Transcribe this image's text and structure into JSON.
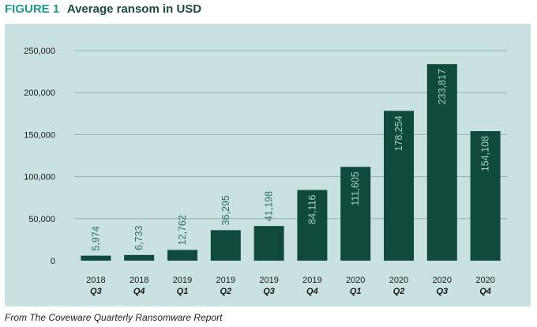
{
  "figure": {
    "label": "FIGURE 1",
    "title": "Average ransom in USD"
  },
  "source": "From The Coveware Quarterly Ransomware Report",
  "colors": {
    "bar": "#0f4a3d",
    "panel_background": "#c9e2e1",
    "gridline": "#8fb3b0",
    "title_accent": "#1e9a8a",
    "title": "#1b4a3f",
    "value_label": "#a9ccc6"
  },
  "chart_data": {
    "type": "bar",
    "title": "Average ransom in USD",
    "xlabel": "",
    "ylabel": "",
    "ylim": [
      0,
      250000
    ],
    "yticks": [
      0,
      50000,
      100000,
      150000,
      200000,
      250000
    ],
    "ytick_labels": [
      "0",
      "50,000",
      "100,000",
      "150,000",
      "200,000",
      "250,000"
    ],
    "grid": true,
    "categories": [
      "2018 Q3",
      "2018 Q4",
      "2019 Q1",
      "2019 Q2",
      "2019 Q3",
      "2019 Q4",
      "2020 Q1",
      "2020 Q2",
      "2020 Q3",
      "2020 Q4"
    ],
    "category_years": [
      "2018",
      "2018",
      "2019",
      "2019",
      "2019",
      "2019",
      "2020",
      "2020",
      "2020",
      "2020"
    ],
    "category_quarters": [
      "Q3",
      "Q4",
      "Q1",
      "Q2",
      "Q3",
      "Q4",
      "Q1",
      "Q2",
      "Q3",
      "Q4"
    ],
    "values": [
      5974,
      6733,
      12762,
      36295,
      41198,
      84116,
      111605,
      178254,
      233817,
      154108
    ],
    "value_labels": [
      "5,974",
      "6,733",
      "12,762",
      "36,295",
      "41,198",
      "84,116",
      "111,605",
      "178,254",
      "233,817",
      "154,108"
    ]
  }
}
